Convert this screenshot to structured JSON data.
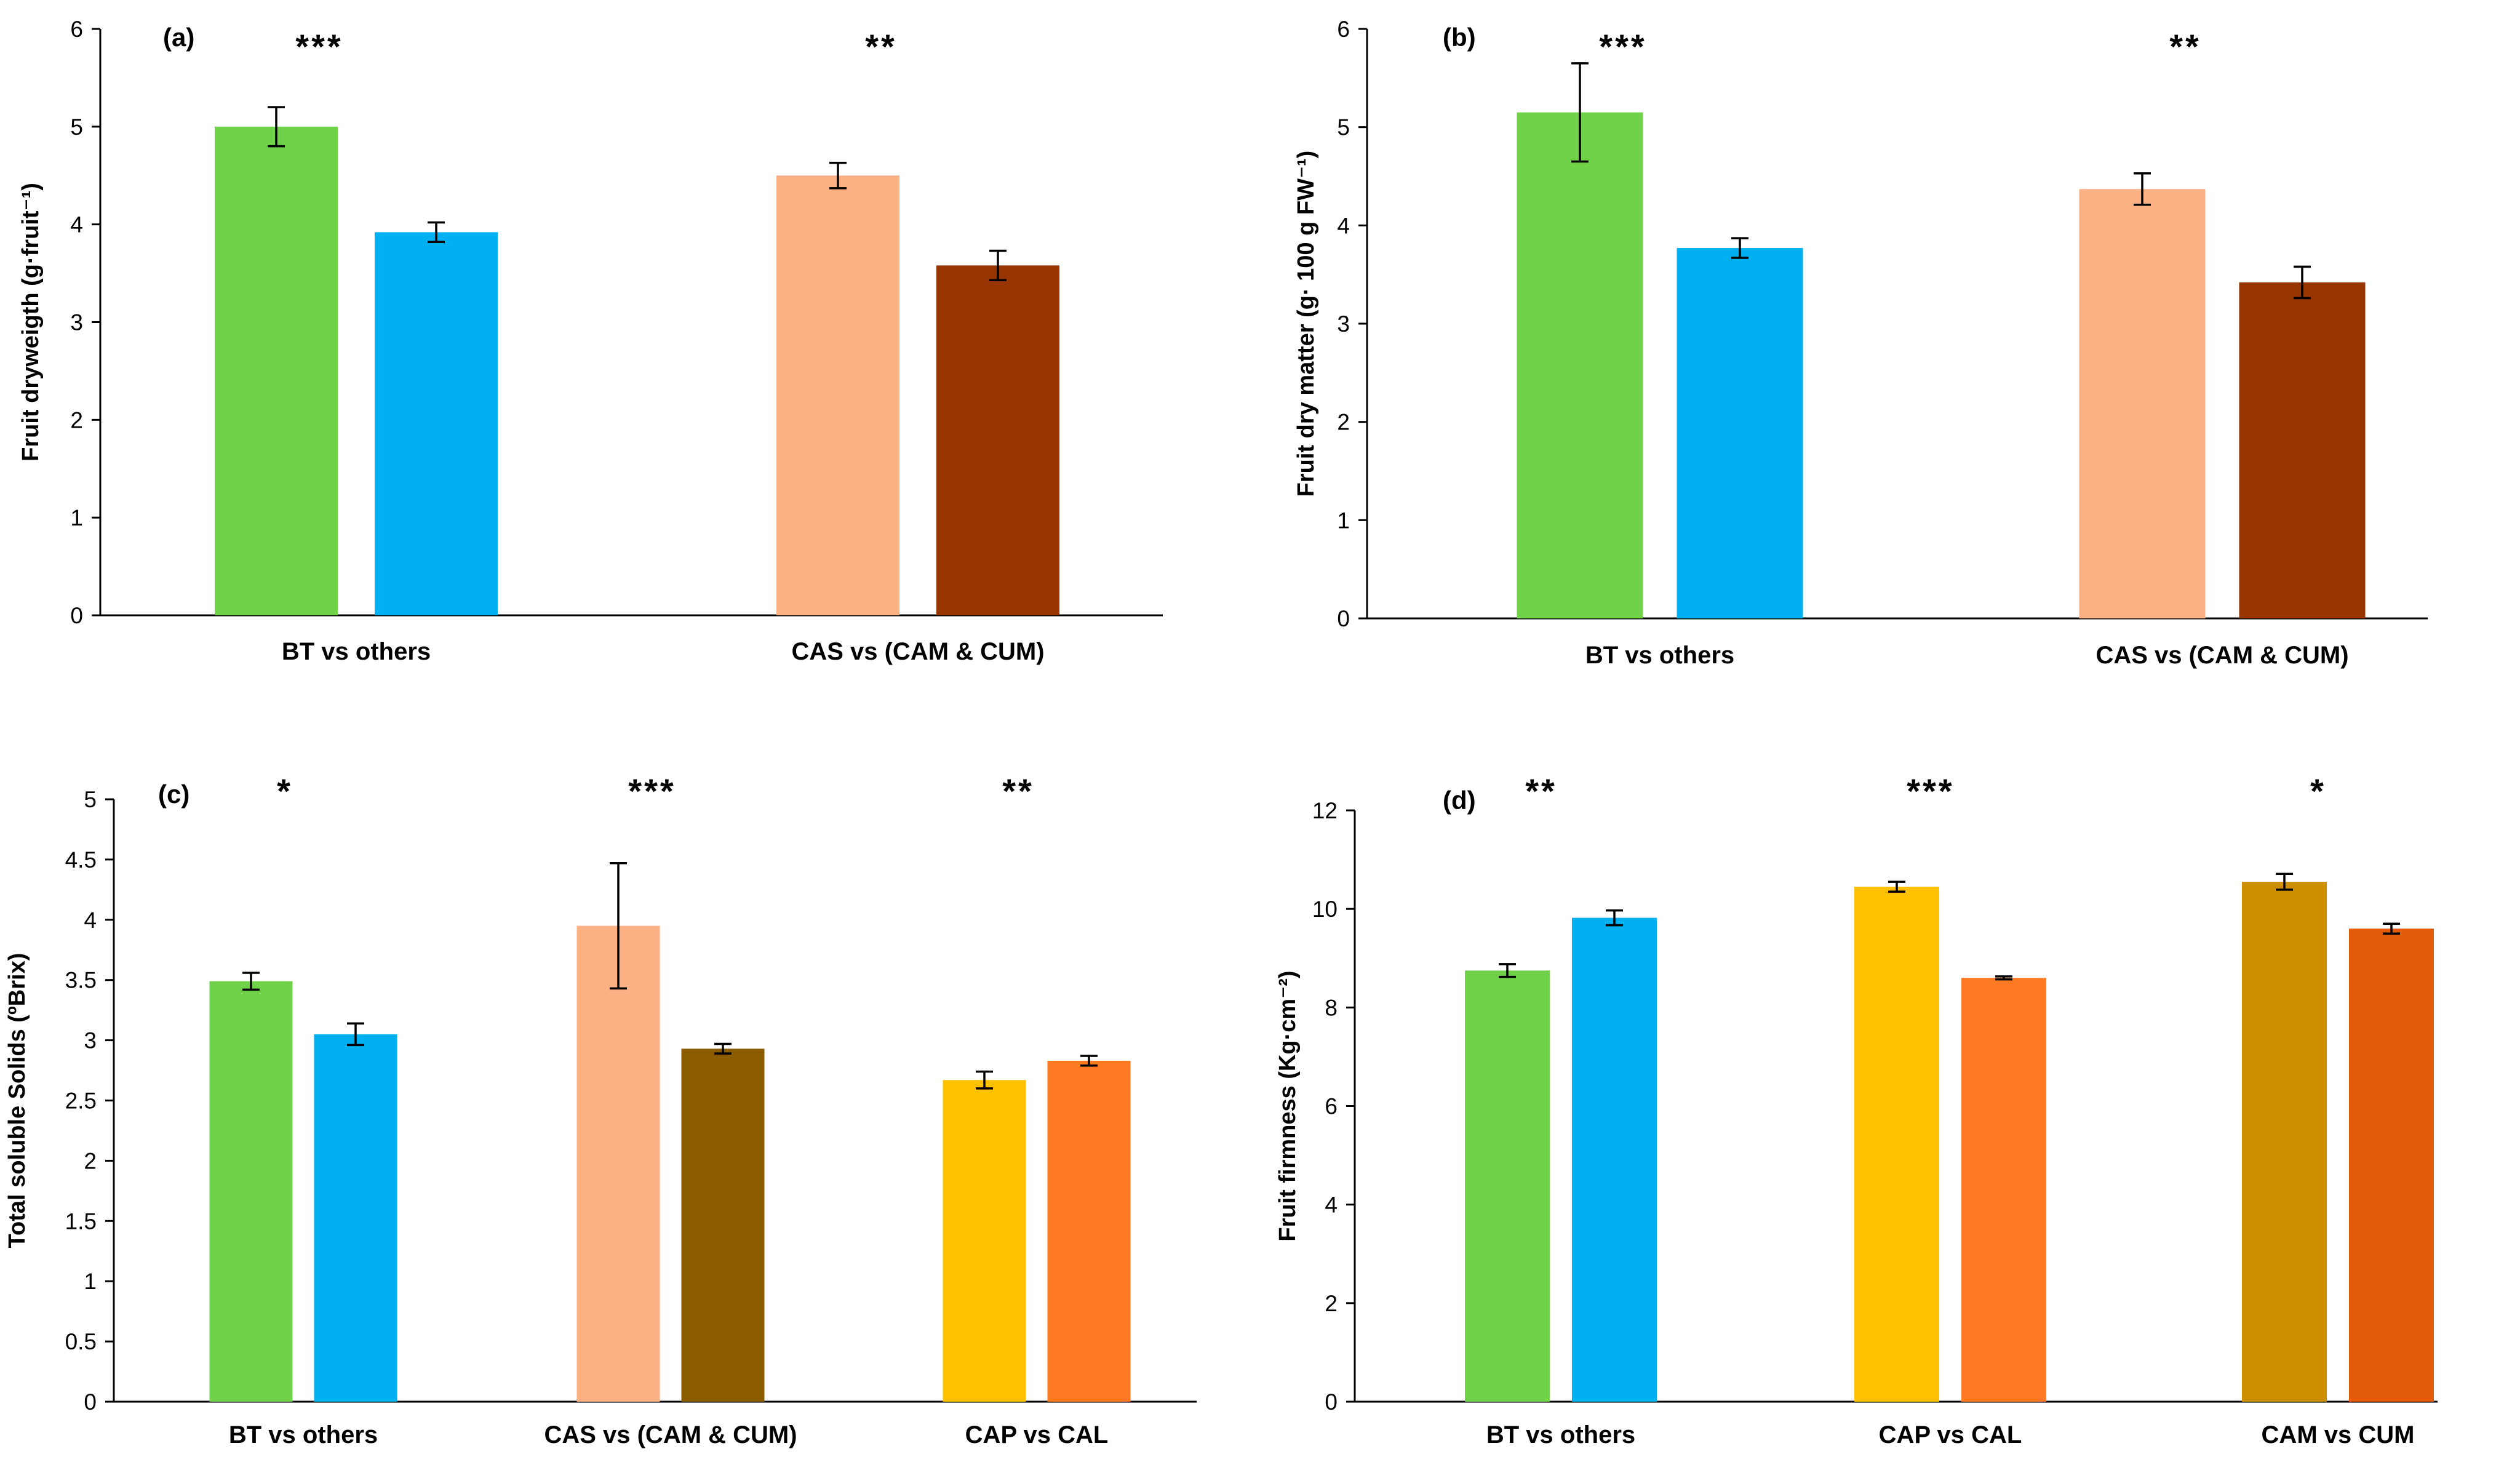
{
  "chart_data": [
    {
      "panel": "(a)",
      "type": "bar",
      "ylabel": "Fruit dryweigth (g·fruit⁻¹)",
      "ylim": [
        0,
        6
      ],
      "yticks": [
        "0",
        "1",
        "2",
        "3",
        "4",
        "5",
        "6"
      ],
      "groups": [
        {
          "label": "BT vs others",
          "sig": "***",
          "bars": [
            {
              "value": 5.0,
              "err": 0.2,
              "color": "#6fd248"
            },
            {
              "value": 3.92,
              "err": 0.1,
              "color": "#00b0f0"
            }
          ]
        },
        {
          "label": "CAS vs (CAM & CUM)",
          "sig": "**",
          "bars": [
            {
              "value": 4.5,
              "err": 0.13,
              "color": "#fbb183"
            },
            {
              "value": 3.58,
              "err": 0.15,
              "color": "#973500"
            }
          ]
        }
      ]
    },
    {
      "panel": "(b)",
      "type": "bar",
      "ylabel": "Fruit dry matter (g· 100 g FW⁻¹)",
      "ylim": [
        0,
        6
      ],
      "yticks": [
        "0",
        "1",
        "2",
        "3",
        "4",
        "5",
        "6"
      ],
      "groups": [
        {
          "label": "BT vs others",
          "sig": "***",
          "bars": [
            {
              "value": 5.15,
              "err": 0.5,
              "color": "#6fd248"
            },
            {
              "value": 3.77,
              "err": 0.1,
              "color": "#00b0f0"
            }
          ]
        },
        {
          "label": "CAS vs (CAM & CUM)",
          "sig": "**",
          "bars": [
            {
              "value": 4.37,
              "err": 0.16,
              "color": "#fbb183"
            },
            {
              "value": 3.42,
              "err": 0.16,
              "color": "#973500"
            }
          ]
        }
      ]
    },
    {
      "panel": "(c)",
      "type": "bar",
      "ylabel": "Total soluble Solids (ºBrix)",
      "ylim": [
        0,
        5
      ],
      "yticks": [
        "0",
        "0.5",
        "1",
        "1.5",
        "2",
        "2.5",
        "3",
        "3.5",
        "4",
        "4.5",
        "5"
      ],
      "groups": [
        {
          "label": "BT vs others",
          "sig": "*",
          "bars": [
            {
              "value": 3.49,
              "err": 0.07,
              "color": "#6fd248"
            },
            {
              "value": 3.05,
              "err": 0.09,
              "color": "#00b0f0"
            }
          ]
        },
        {
          "label": "CAS vs (CAM & CUM)",
          "sig": "***",
          "bars": [
            {
              "value": 3.95,
              "err": 0.52,
              "color": "#fbb183"
            },
            {
              "value": 2.93,
              "err": 0.04,
              "color": "#8b5d00"
            }
          ]
        },
        {
          "label": "CAP vs CAL",
          "sig": "**",
          "bars": [
            {
              "value": 2.67,
              "err": 0.07,
              "color": "#ffc000"
            },
            {
              "value": 2.83,
              "err": 0.04,
              "color": "#ff7a22"
            }
          ]
        }
      ]
    },
    {
      "panel": "(d)",
      "type": "bar",
      "ylabel": "Fruit firmness (Kg·cm⁻²)",
      "ylim": [
        0,
        12
      ],
      "yticks": [
        "0",
        "2",
        "4",
        "6",
        "8",
        "10",
        "12"
      ],
      "groups": [
        {
          "label": "BT vs others",
          "sig": "**",
          "bars": [
            {
              "value": 8.75,
              "err": 0.13,
              "color": "#6fd248"
            },
            {
              "value": 9.82,
              "err": 0.15,
              "color": "#00b0f0"
            }
          ]
        },
        {
          "label": "CAP vs CAL",
          "sig": "***",
          "bars": [
            {
              "value": 10.45,
              "err": 0.1,
              "color": "#ffc000"
            },
            {
              "value": 8.6,
              "err": 0.03,
              "color": "#ff7a22"
            }
          ]
        },
        {
          "label": "CAM vs CUM",
          "sig": "*",
          "bars": [
            {
              "value": 10.55,
              "err": 0.16,
              "color": "#cd8f00"
            },
            {
              "value": 9.6,
              "err": 0.1,
              "color": "#e25a0a"
            }
          ]
        }
      ]
    }
  ]
}
